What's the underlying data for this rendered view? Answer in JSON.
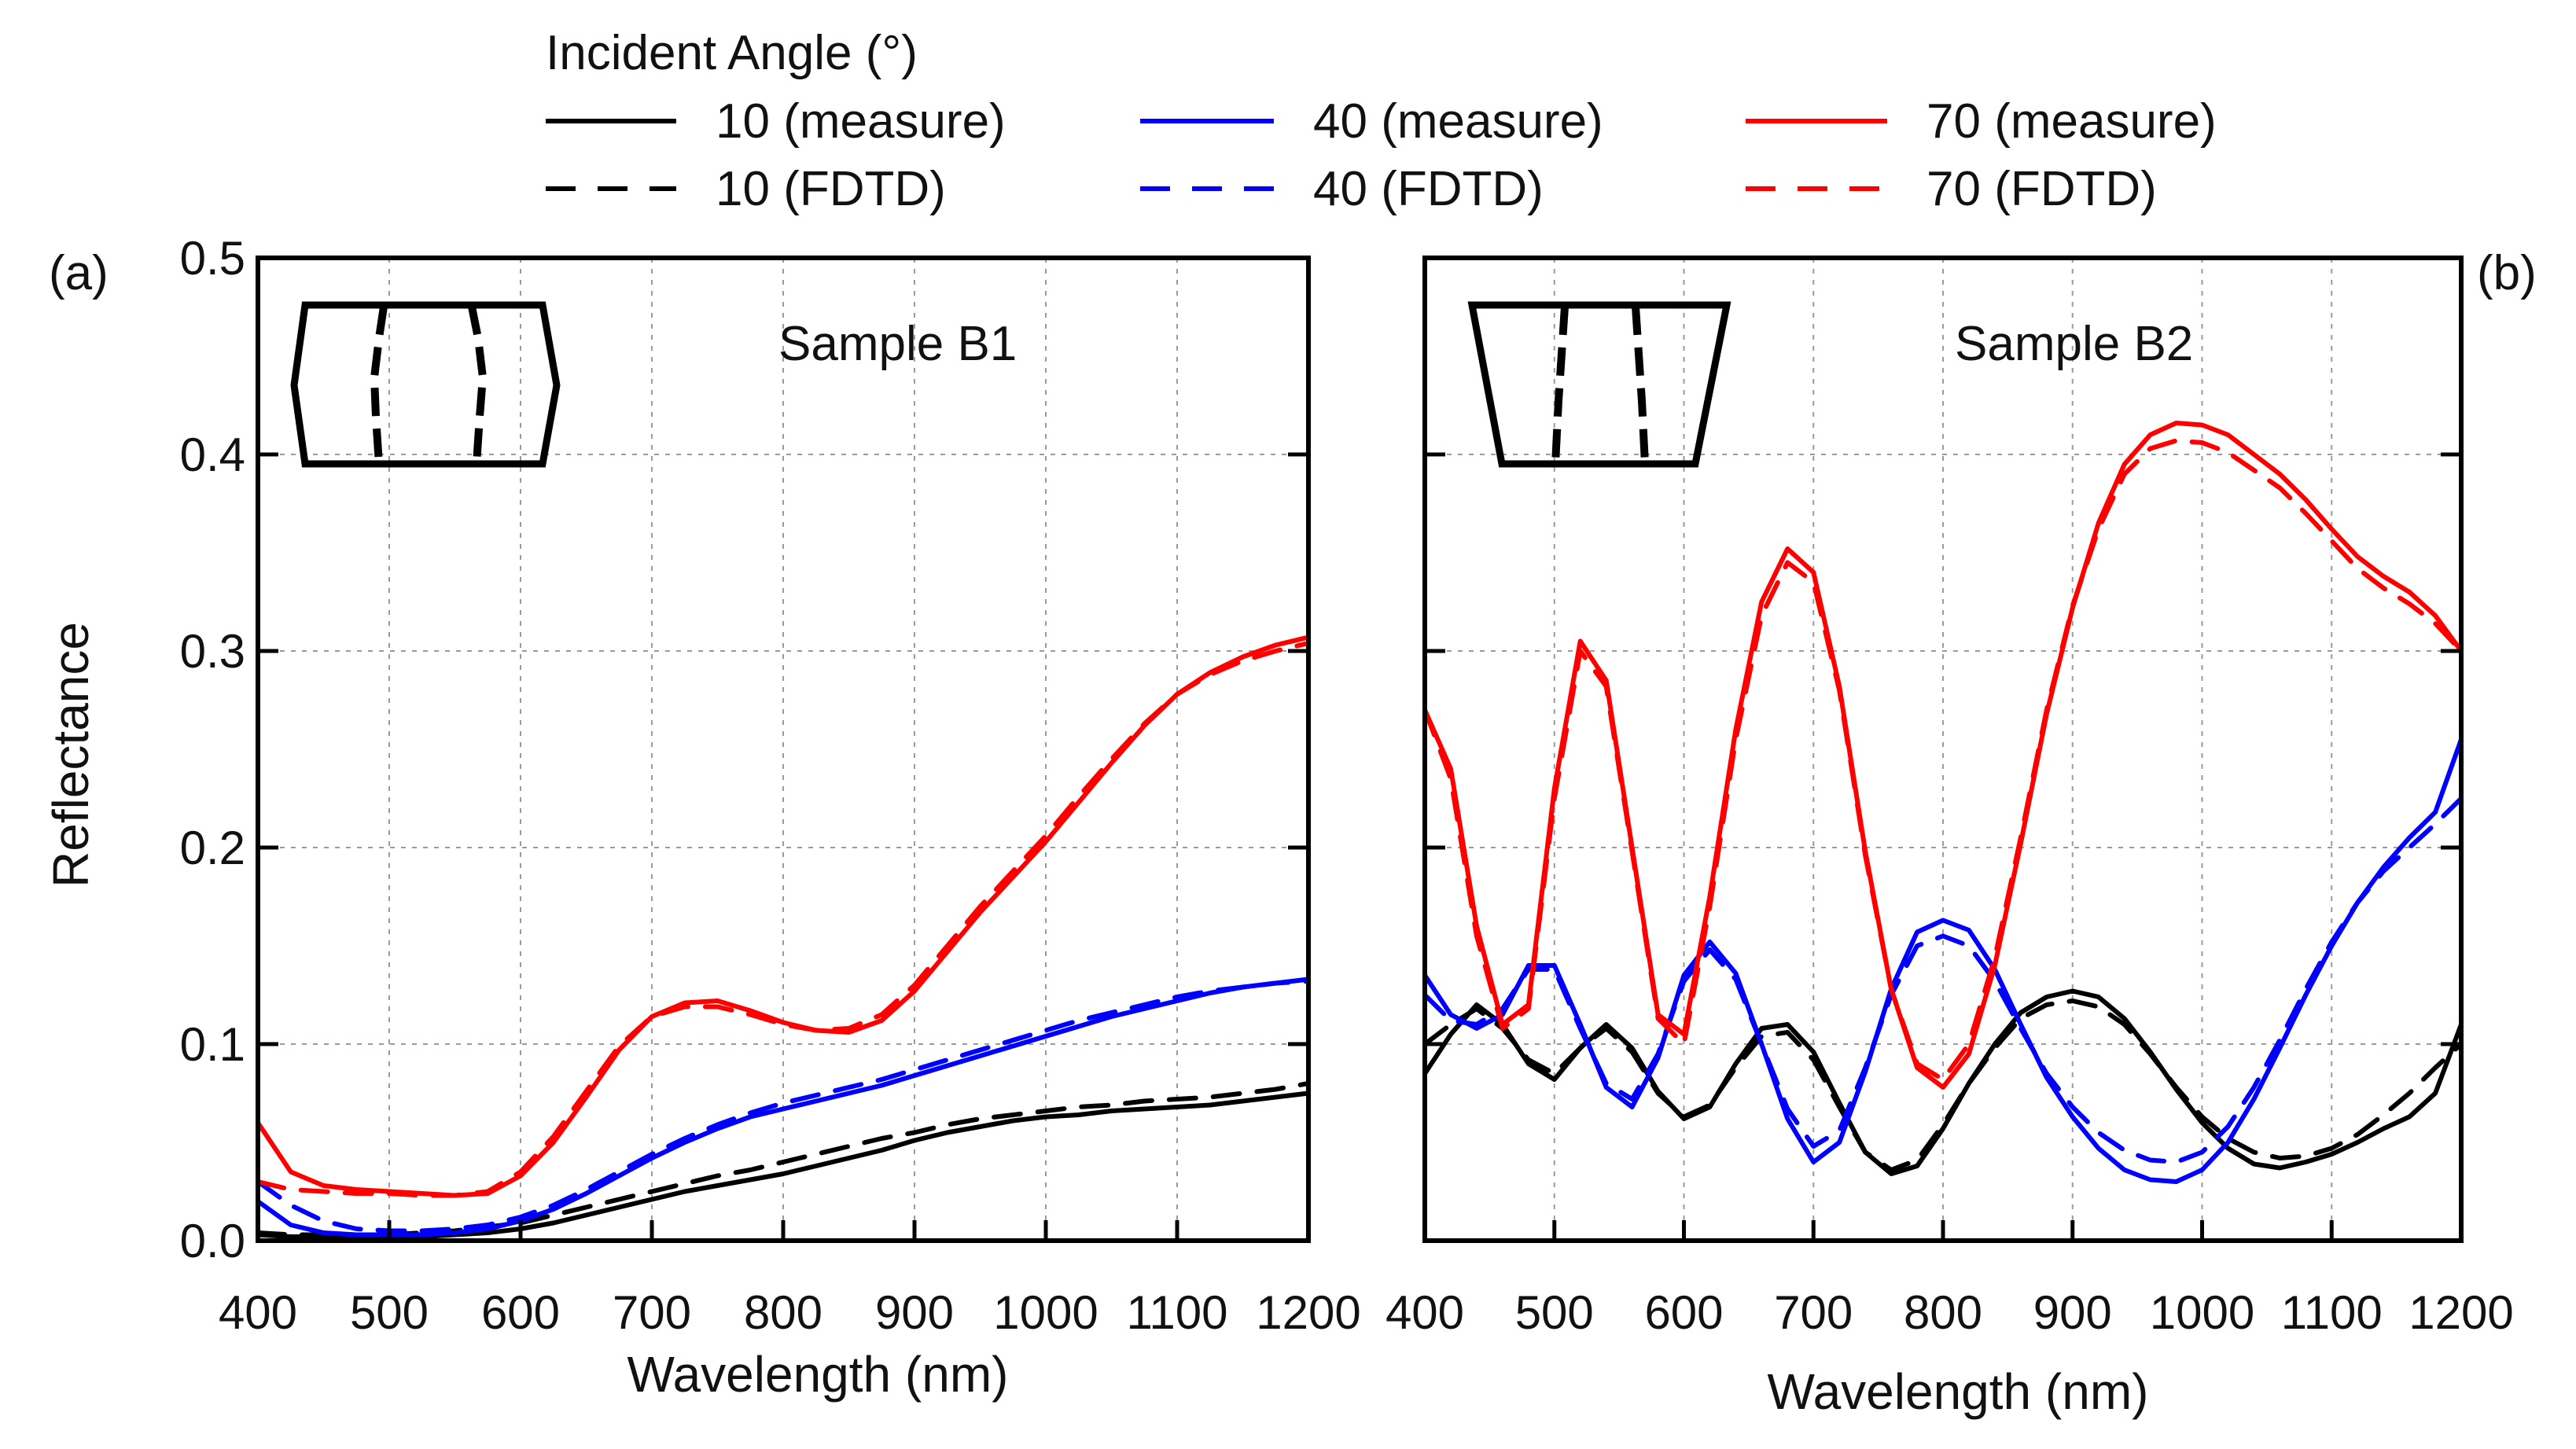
{
  "legend": {
    "title": "Incident Angle (°)",
    "entries": [
      {
        "label": "10 (measure)",
        "color": "#000000",
        "dashed": false
      },
      {
        "label": "10 (FDTD)",
        "color": "#000000",
        "dashed": true
      },
      {
        "label": "40 (measure)",
        "color": "#0000ff",
        "dashed": false
      },
      {
        "label": "40 (FDTD)",
        "color": "#0000ff",
        "dashed": true
      },
      {
        "label": "70 (measure)",
        "color": "#ff0000",
        "dashed": false
      },
      {
        "label": "70 (FDTD)",
        "color": "#ff0000",
        "dashed": true
      }
    ]
  },
  "chart_data": [
    {
      "type": "line",
      "panel_label": "(a)",
      "annotation": "Sample B1",
      "xlabel": "Wavelength (nm)",
      "ylabel": "Reflectance",
      "xlim": [
        400,
        1200
      ],
      "ylim": [
        0.0,
        0.5
      ],
      "xticks": [
        "400",
        "500",
        "600",
        "700",
        "800",
        "900",
        "1000",
        "1100",
        "1200"
      ],
      "yticks": [
        "0.0",
        "0.1",
        "0.2",
        "0.3",
        "0.4",
        "0.5"
      ],
      "grid": true,
      "x": [
        400,
        425,
        450,
        475,
        500,
        525,
        550,
        575,
        600,
        625,
        650,
        675,
        700,
        725,
        750,
        775,
        800,
        825,
        850,
        875,
        900,
        925,
        950,
        975,
        1000,
        1025,
        1050,
        1075,
        1100,
        1125,
        1150,
        1175,
        1200
      ],
      "series": [
        {
          "name": "10 (measure)",
          "values": [
            0.003,
            0.002,
            0.002,
            0.002,
            0.002,
            0.002,
            0.003,
            0.004,
            0.006,
            0.009,
            0.013,
            0.017,
            0.021,
            0.025,
            0.028,
            0.031,
            0.034,
            0.038,
            0.042,
            0.046,
            0.051,
            0.055,
            0.058,
            0.061,
            0.063,
            0.064,
            0.066,
            0.067,
            0.068,
            0.069,
            0.071,
            0.073,
            0.075
          ]
        },
        {
          "name": "10 (FDTD)",
          "values": [
            0.004,
            0.003,
            0.003,
            0.003,
            0.003,
            0.004,
            0.005,
            0.007,
            0.009,
            0.013,
            0.017,
            0.021,
            0.025,
            0.029,
            0.033,
            0.036,
            0.04,
            0.044,
            0.048,
            0.052,
            0.055,
            0.059,
            0.062,
            0.064,
            0.066,
            0.068,
            0.069,
            0.071,
            0.072,
            0.073,
            0.075,
            0.077,
            0.08
          ]
        },
        {
          "name": "40 (measure)",
          "values": [
            0.02,
            0.008,
            0.004,
            0.003,
            0.003,
            0.003,
            0.004,
            0.006,
            0.01,
            0.016,
            0.024,
            0.033,
            0.042,
            0.05,
            0.057,
            0.063,
            0.067,
            0.071,
            0.075,
            0.079,
            0.084,
            0.089,
            0.094,
            0.099,
            0.104,
            0.109,
            0.114,
            0.118,
            0.122,
            0.126,
            0.129,
            0.131,
            0.133
          ]
        },
        {
          "name": "40 (FDTD)",
          "values": [
            0.03,
            0.018,
            0.01,
            0.006,
            0.005,
            0.005,
            0.006,
            0.008,
            0.012,
            0.018,
            0.026,
            0.035,
            0.044,
            0.052,
            0.059,
            0.065,
            0.07,
            0.074,
            0.078,
            0.082,
            0.087,
            0.092,
            0.097,
            0.102,
            0.107,
            0.112,
            0.116,
            0.12,
            0.124,
            0.127,
            0.129,
            0.131,
            0.132
          ]
        },
        {
          "name": "70 (measure)",
          "values": [
            0.06,
            0.035,
            0.028,
            0.026,
            0.025,
            0.024,
            0.023,
            0.024,
            0.033,
            0.05,
            0.073,
            0.097,
            0.114,
            0.121,
            0.122,
            0.117,
            0.111,
            0.107,
            0.106,
            0.112,
            0.127,
            0.147,
            0.167,
            0.185,
            0.203,
            0.223,
            0.243,
            0.262,
            0.278,
            0.289,
            0.297,
            0.303,
            0.307
          ]
        },
        {
          "name": "70 (FDTD)",
          "values": [
            0.03,
            0.026,
            0.025,
            0.024,
            0.024,
            0.023,
            0.023,
            0.025,
            0.035,
            0.053,
            0.076,
            0.099,
            0.114,
            0.119,
            0.119,
            0.115,
            0.11,
            0.107,
            0.108,
            0.115,
            0.13,
            0.15,
            0.17,
            0.188,
            0.206,
            0.226,
            0.245,
            0.263,
            0.278,
            0.288,
            0.295,
            0.3,
            0.304
          ]
        }
      ]
    },
    {
      "type": "line",
      "panel_label": "(b)",
      "annotation": "Sample B2",
      "xlabel": "Wavelength (nm)",
      "ylabel": "",
      "xlim": [
        400,
        1200
      ],
      "ylim": [
        0.0,
        0.5
      ],
      "xticks": [
        "400",
        "500",
        "600",
        "700",
        "800",
        "900",
        "1000",
        "1100",
        "1200"
      ],
      "grid": true,
      "x": [
        400,
        420,
        440,
        460,
        480,
        500,
        520,
        540,
        560,
        580,
        600,
        620,
        640,
        660,
        680,
        700,
        720,
        740,
        760,
        780,
        800,
        820,
        840,
        860,
        880,
        900,
        920,
        940,
        960,
        980,
        1000,
        1020,
        1040,
        1060,
        1080,
        1100,
        1120,
        1140,
        1160,
        1180,
        1200
      ],
      "series": [
        {
          "name": "10 (measure)",
          "values": [
            0.085,
            0.105,
            0.12,
            0.11,
            0.09,
            0.082,
            0.098,
            0.11,
            0.098,
            0.076,
            0.062,
            0.068,
            0.09,
            0.108,
            0.11,
            0.096,
            0.07,
            0.045,
            0.034,
            0.038,
            0.057,
            0.08,
            0.1,
            0.116,
            0.124,
            0.127,
            0.124,
            0.113,
            0.096,
            0.077,
            0.06,
            0.047,
            0.039,
            0.037,
            0.04,
            0.044,
            0.05,
            0.057,
            0.063,
            0.075,
            0.11
          ]
        },
        {
          "name": "10 (FDTD)",
          "values": [
            0.1,
            0.11,
            0.118,
            0.108,
            0.092,
            0.085,
            0.098,
            0.108,
            0.096,
            0.075,
            0.063,
            0.069,
            0.088,
            0.104,
            0.106,
            0.092,
            0.068,
            0.045,
            0.036,
            0.041,
            0.059,
            0.08,
            0.098,
            0.113,
            0.12,
            0.122,
            0.119,
            0.11,
            0.095,
            0.078,
            0.063,
            0.052,
            0.045,
            0.042,
            0.043,
            0.047,
            0.054,
            0.064,
            0.075,
            0.088,
            0.1
          ]
        },
        {
          "name": "40 (measure)",
          "values": [
            0.135,
            0.115,
            0.108,
            0.115,
            0.14,
            0.14,
            0.11,
            0.078,
            0.068,
            0.093,
            0.135,
            0.152,
            0.136,
            0.1,
            0.062,
            0.04,
            0.05,
            0.086,
            0.128,
            0.157,
            0.163,
            0.158,
            0.138,
            0.11,
            0.083,
            0.063,
            0.047,
            0.036,
            0.031,
            0.03,
            0.036,
            0.05,
            0.072,
            0.098,
            0.125,
            0.15,
            0.172,
            0.19,
            0.205,
            0.218,
            0.255
          ]
        },
        {
          "name": "40 (FDTD)",
          "values": [
            0.125,
            0.112,
            0.11,
            0.118,
            0.138,
            0.138,
            0.108,
            0.08,
            0.072,
            0.095,
            0.132,
            0.148,
            0.133,
            0.1,
            0.067,
            0.048,
            0.056,
            0.088,
            0.125,
            0.15,
            0.155,
            0.15,
            0.132,
            0.108,
            0.085,
            0.068,
            0.055,
            0.046,
            0.041,
            0.04,
            0.045,
            0.058,
            0.078,
            0.102,
            0.128,
            0.152,
            0.172,
            0.188,
            0.2,
            0.212,
            0.225
          ]
        },
        {
          "name": "70 (measure)",
          "values": [
            0.27,
            0.24,
            0.16,
            0.11,
            0.12,
            0.23,
            0.305,
            0.285,
            0.2,
            0.115,
            0.105,
            0.175,
            0.26,
            0.325,
            0.352,
            0.34,
            0.282,
            0.198,
            0.128,
            0.088,
            0.078,
            0.095,
            0.14,
            0.202,
            0.268,
            0.322,
            0.365,
            0.395,
            0.41,
            0.416,
            0.415,
            0.41,
            0.4,
            0.39,
            0.377,
            0.362,
            0.348,
            0.338,
            0.33,
            0.318,
            0.3
          ]
        },
        {
          "name": "70 (FDTD)",
          "values": [
            0.27,
            0.235,
            0.155,
            0.108,
            0.118,
            0.225,
            0.3,
            0.282,
            0.198,
            0.113,
            0.1,
            0.17,
            0.255,
            0.318,
            0.345,
            0.335,
            0.28,
            0.196,
            0.128,
            0.09,
            0.082,
            0.1,
            0.144,
            0.205,
            0.27,
            0.323,
            0.362,
            0.39,
            0.403,
            0.407,
            0.406,
            0.401,
            0.392,
            0.383,
            0.37,
            0.356,
            0.342,
            0.332,
            0.324,
            0.314,
            0.3
          ]
        }
      ]
    }
  ]
}
